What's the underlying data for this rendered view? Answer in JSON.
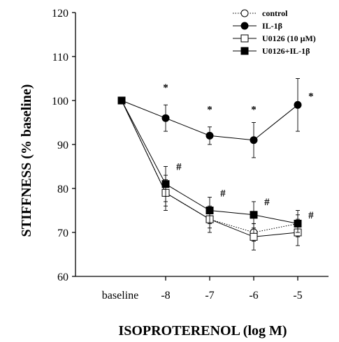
{
  "chart_data": {
    "type": "line",
    "xlabel": "ISOPROTERENOL (log M)",
    "ylabel": "STIFFNESS (% baseline)",
    "ylim": [
      60,
      120
    ],
    "yticks": [
      60,
      70,
      80,
      90,
      100,
      110,
      120
    ],
    "categories": [
      "baseline",
      "-8",
      "-7",
      "-6",
      "-5"
    ],
    "legend_position": "top-right",
    "series": [
      {
        "name": "control",
        "marker": "open-circle",
        "line": "dotted",
        "values": [
          100,
          79,
          73,
          70,
          72
        ],
        "errors": [
          0,
          3,
          2,
          2,
          3
        ]
      },
      {
        "name": "IL-1β",
        "marker": "filled-circle",
        "line": "solid",
        "values": [
          100,
          96,
          92,
          91,
          99
        ],
        "errors": [
          0,
          3,
          2,
          4,
          6
        ]
      },
      {
        "name": "U0126 (10 μM)",
        "marker": "open-square",
        "line": "solid",
        "values": [
          100,
          79,
          73,
          69,
          70
        ],
        "errors": [
          0,
          4,
          3,
          3,
          3
        ]
      },
      {
        "name": "U0126+IL-1β",
        "marker": "filled-square",
        "line": "solid",
        "values": [
          100,
          81,
          75,
          74,
          72
        ],
        "errors": [
          0,
          4,
          3,
          3,
          2
        ]
      }
    ],
    "annotations": [
      {
        "text": "*",
        "x": 1,
        "y": 103
      },
      {
        "text": "*",
        "x": 2,
        "y": 98
      },
      {
        "text": "*",
        "x": 3,
        "y": 98
      },
      {
        "text": "*",
        "x": 4.3,
        "y": 101
      },
      {
        "text": "#",
        "x": 1.3,
        "y": 85
      },
      {
        "text": "#",
        "x": 2.3,
        "y": 79
      },
      {
        "text": "#",
        "x": 3.3,
        "y": 77
      },
      {
        "text": "#",
        "x": 4.3,
        "y": 74
      }
    ]
  }
}
